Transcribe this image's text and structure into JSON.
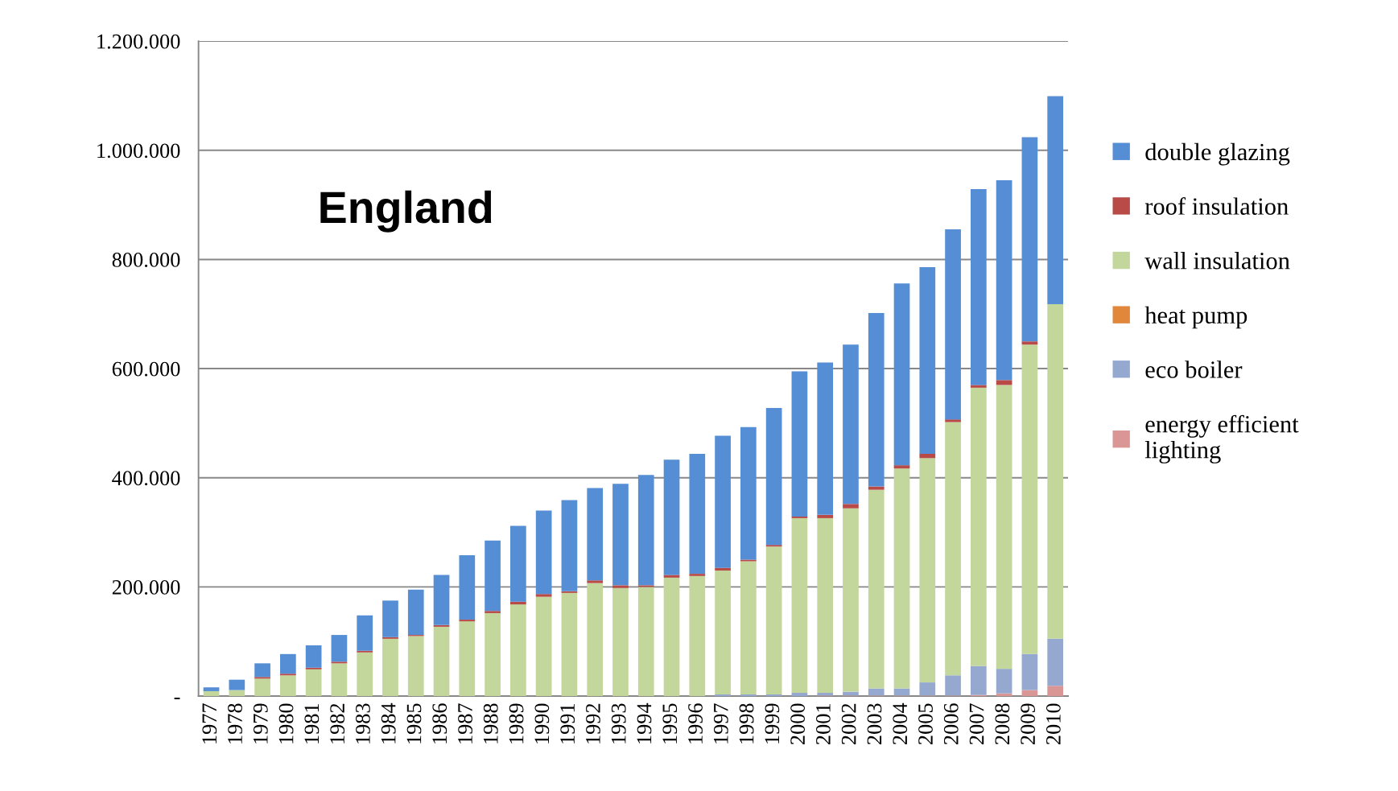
{
  "chart_data": {
    "type": "bar",
    "stacked": true,
    "categories": [
      "1977",
      "1978",
      "1979",
      "1980",
      "1981",
      "1982",
      "1983",
      "1984",
      "1985",
      "1986",
      "1987",
      "1988",
      "1989",
      "1990",
      "1991",
      "1992",
      "1993",
      "1994",
      "1995",
      "1996",
      "1997",
      "1998",
      "1999",
      "2000",
      "2001",
      "2002",
      "2003",
      "2004",
      "2005",
      "2006",
      "2007",
      "2008",
      "2009",
      "2010"
    ],
    "series": [
      {
        "name": "energy efficient lighting",
        "color": "#d99694",
        "values": [
          0,
          0,
          0,
          0,
          0,
          0,
          0,
          0,
          0,
          0,
          0,
          0,
          0,
          0,
          0,
          0,
          0,
          0,
          0,
          0,
          0,
          0,
          0,
          0,
          1000,
          1000,
          1000,
          1000,
          1000,
          1000,
          2000,
          5000,
          11000,
          19000
        ]
      },
      {
        "name": "eco boiler",
        "color": "#95a9d0",
        "values": [
          0,
          0,
          0,
          0,
          0,
          0,
          0,
          0,
          0,
          0,
          0,
          0,
          0,
          0,
          0,
          0,
          0,
          0,
          0,
          0,
          3000,
          3000,
          3000,
          6000,
          5000,
          7000,
          13000,
          13000,
          24000,
          37000,
          53000,
          45000,
          66000,
          86000
        ]
      },
      {
        "name": "heat pump",
        "color": "#e0873c",
        "values": [
          0,
          0,
          0,
          0,
          0,
          0,
          0,
          0,
          0,
          0,
          0,
          0,
          0,
          0,
          0,
          0,
          0,
          0,
          0,
          0,
          0,
          0,
          0,
          0,
          0,
          0,
          0,
          0,
          0,
          0,
          0,
          0,
          0,
          0
        ]
      },
      {
        "name": "wall insulation",
        "color": "#c3d69b",
        "values": [
          9000,
          11000,
          32000,
          38000,
          49000,
          60000,
          80000,
          105000,
          110000,
          127000,
          137000,
          152000,
          168000,
          182000,
          189000,
          207000,
          198000,
          200000,
          217000,
          220000,
          227000,
          244000,
          271000,
          320000,
          320000,
          336000,
          364000,
          403000,
          411000,
          464000,
          510000,
          520000,
          567000,
          613000
        ]
      },
      {
        "name": "roof insulation",
        "color": "#b84a47",
        "values": [
          0,
          0,
          3000,
          3000,
          3000,
          3000,
          3000,
          3000,
          2000,
          3000,
          3000,
          4000,
          5000,
          5000,
          3000,
          5000,
          5000,
          3000,
          5000,
          4000,
          5000,
          3000,
          3000,
          3000,
          6000,
          8000,
          6000,
          6000,
          8000,
          5000,
          5000,
          9000,
          6000,
          0
        ]
      },
      {
        "name": "double glazing",
        "color": "#558ed5",
        "values": [
          7000,
          19000,
          25000,
          36000,
          41000,
          49000,
          65000,
          67000,
          83000,
          92000,
          118000,
          129000,
          139000,
          153000,
          167000,
          169000,
          186000,
          202000,
          211000,
          220000,
          242000,
          243000,
          251000,
          266000,
          279000,
          292000,
          318000,
          333000,
          342000,
          348000,
          359000,
          366000,
          374000,
          381000
        ]
      }
    ],
    "ylim": [
      0,
      1200000
    ],
    "yticks": [
      {
        "value": 0,
        "label": "-"
      },
      {
        "value": 200000,
        "label": "200.000"
      },
      {
        "value": 400000,
        "label": "400.000"
      },
      {
        "value": 600000,
        "label": "600.000"
      },
      {
        "value": 800000,
        "label": "800.000"
      },
      {
        "value": 1000000,
        "label": "1.000.000"
      },
      {
        "value": 1200000,
        "label": "1.200.000"
      }
    ],
    "grid": "y",
    "legend": "right",
    "annotations": [
      "England"
    ]
  }
}
